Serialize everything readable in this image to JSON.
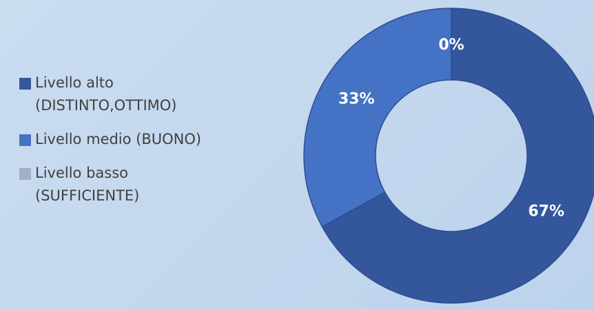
{
  "chart_data": {
    "type": "doughnut",
    "categories": [
      "Livello alto (DISTINTO,OTTIMO)",
      "Livello medio (BUONO)",
      "Livello basso (SUFFICIENTE)"
    ],
    "values": [
      67,
      33,
      0
    ],
    "value_labels": [
      "67%",
      "33%",
      "0%"
    ],
    "colors": [
      "#34569c",
      "#4472c4",
      "#a3aecb"
    ],
    "legend": "left"
  }
}
